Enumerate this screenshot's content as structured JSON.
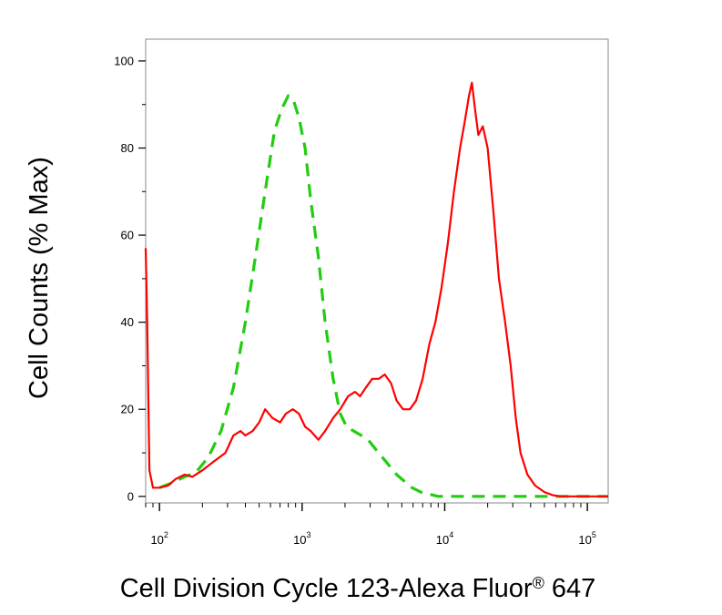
{
  "chart_data": {
    "type": "line",
    "xlabel": "Cell Division Cycle 123-Alexa Fluor",
    "xlabel_mark": "®",
    "xlabel_tail": " 647",
    "ylabel": "Cell Counts (% Max)",
    "x_scale": "log",
    "xlim": [
      80,
      140000
    ],
    "ylim": [
      -1.5,
      105
    ],
    "grid": false,
    "legend": "none",
    "y_ticks": [
      {
        "value": 0,
        "label": "0"
      },
      {
        "value": 20,
        "label": "20"
      },
      {
        "value": 40,
        "label": "40"
      },
      {
        "value": 60,
        "label": "60"
      },
      {
        "value": 80,
        "label": "80"
      },
      {
        "value": 100,
        "label": "100"
      }
    ],
    "x_ticks": [
      {
        "value": 100,
        "base": "10",
        "exp": "2"
      },
      {
        "value": 1000,
        "base": "10",
        "exp": "3"
      },
      {
        "value": 10000,
        "base": "10",
        "exp": "4"
      },
      {
        "value": 100000,
        "base": "10",
        "exp": "5"
      }
    ],
    "series": [
      {
        "color": "#ff0000",
        "style": "solid",
        "points": [
          [
            80,
            57
          ],
          [
            82,
            40
          ],
          [
            85,
            6
          ],
          [
            90,
            2
          ],
          [
            100,
            2
          ],
          [
            115,
            2.5
          ],
          [
            130,
            4
          ],
          [
            150,
            5
          ],
          [
            170,
            4.5
          ],
          [
            200,
            6
          ],
          [
            240,
            8
          ],
          [
            290,
            10
          ],
          [
            330,
            14
          ],
          [
            370,
            15
          ],
          [
            400,
            14
          ],
          [
            450,
            15
          ],
          [
            500,
            17
          ],
          [
            550,
            20
          ],
          [
            620,
            18
          ],
          [
            700,
            17
          ],
          [
            770,
            19
          ],
          [
            860,
            20
          ],
          [
            950,
            19
          ],
          [
            1050,
            16
          ],
          [
            1150,
            15
          ],
          [
            1300,
            13
          ],
          [
            1450,
            15
          ],
          [
            1650,
            18
          ],
          [
            1850,
            20
          ],
          [
            2100,
            23
          ],
          [
            2350,
            24
          ],
          [
            2550,
            23
          ],
          [
            2800,
            25
          ],
          [
            3100,
            27
          ],
          [
            3450,
            27
          ],
          [
            3800,
            28
          ],
          [
            4200,
            26
          ],
          [
            4600,
            22
          ],
          [
            5100,
            20
          ],
          [
            5700,
            20
          ],
          [
            6300,
            22
          ],
          [
            7000,
            27
          ],
          [
            7800,
            35
          ],
          [
            8600,
            40
          ],
          [
            9500,
            48
          ],
          [
            10500,
            58
          ],
          [
            11600,
            70
          ],
          [
            12800,
            80
          ],
          [
            13800,
            86
          ],
          [
            14800,
            92
          ],
          [
            15500,
            95
          ],
          [
            16300,
            89
          ],
          [
            17200,
            83
          ],
          [
            18500,
            85
          ],
          [
            20000,
            80
          ],
          [
            22000,
            65
          ],
          [
            24000,
            50
          ],
          [
            26500,
            40
          ],
          [
            29000,
            30
          ],
          [
            31500,
            18
          ],
          [
            34000,
            10
          ],
          [
            38000,
            5
          ],
          [
            43000,
            2.5
          ],
          [
            50000,
            1
          ],
          [
            57000,
            0.3
          ],
          [
            65000,
            0
          ],
          [
            90000,
            0
          ],
          [
            140000,
            0
          ]
        ]
      },
      {
        "color": "#22cc11",
        "style": "dashed",
        "points": [
          [
            100,
            2
          ],
          [
            120,
            3
          ],
          [
            150,
            4.5
          ],
          [
            180,
            5.5
          ],
          [
            220,
            9
          ],
          [
            270,
            15
          ],
          [
            330,
            25
          ],
          [
            400,
            40
          ],
          [
            470,
            55
          ],
          [
            550,
            70
          ],
          [
            640,
            84
          ],
          [
            720,
            89
          ],
          [
            800,
            92
          ],
          [
            870,
            91
          ],
          [
            950,
            87
          ],
          [
            1050,
            80
          ],
          [
            1150,
            68
          ],
          [
            1300,
            55
          ],
          [
            1450,
            40
          ],
          [
            1650,
            27
          ],
          [
            1850,
            19
          ],
          [
            2050,
            16
          ],
          [
            2300,
            15
          ],
          [
            2600,
            14
          ],
          [
            2900,
            13
          ],
          [
            3250,
            11
          ],
          [
            3650,
            9
          ],
          [
            4100,
            7
          ],
          [
            4600,
            5
          ],
          [
            5200,
            3.5
          ],
          [
            5900,
            2
          ],
          [
            6800,
            1
          ],
          [
            7800,
            0.5
          ],
          [
            9000,
            0
          ],
          [
            12000,
            0
          ],
          [
            140000,
            0
          ]
        ]
      }
    ]
  }
}
